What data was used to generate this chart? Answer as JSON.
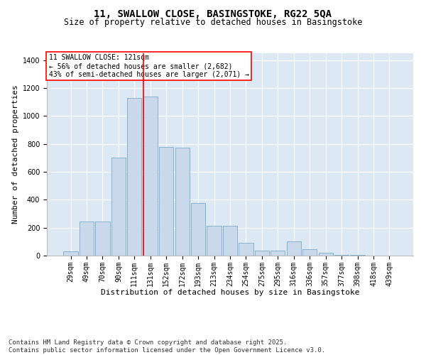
{
  "title1": "11, SWALLOW CLOSE, BASINGSTOKE, RG22 5QA",
  "title2": "Size of property relative to detached houses in Basingstoke",
  "xlabel": "Distribution of detached houses by size in Basingstoke",
  "ylabel": "Number of detached properties",
  "categories": [
    "29sqm",
    "49sqm",
    "70sqm",
    "90sqm",
    "111sqm",
    "131sqm",
    "152sqm",
    "172sqm",
    "193sqm",
    "213sqm",
    "234sqm",
    "254sqm",
    "275sqm",
    "295sqm",
    "316sqm",
    "336sqm",
    "357sqm",
    "377sqm",
    "398sqm",
    "418sqm",
    "439sqm"
  ],
  "values": [
    30,
    242,
    242,
    700,
    1130,
    1140,
    780,
    775,
    375,
    215,
    215,
    90,
    35,
    35,
    100,
    48,
    20,
    5,
    5,
    0,
    0
  ],
  "bar_color": "#c9d9eb",
  "bar_edge_color": "#6a9ec2",
  "bg_color": "#dde8f5",
  "grid_color": "#ffffff",
  "annotation_box_text": "11 SWALLOW CLOSE: 121sqm\n← 56% of detached houses are smaller (2,682)\n43% of semi-detached houses are larger (2,071) →",
  "red_line_x": 4.58,
  "ylim": [
    0,
    1450
  ],
  "yticks": [
    0,
    200,
    400,
    600,
    800,
    1000,
    1200,
    1400
  ],
  "footer": "Contains HM Land Registry data © Crown copyright and database right 2025.\nContains public sector information licensed under the Open Government Licence v3.0.",
  "title_fontsize": 10,
  "subtitle_fontsize": 8.5,
  "axis_label_fontsize": 8,
  "tick_fontsize": 7,
  "footer_fontsize": 6.5,
  "annot_fontsize": 7
}
